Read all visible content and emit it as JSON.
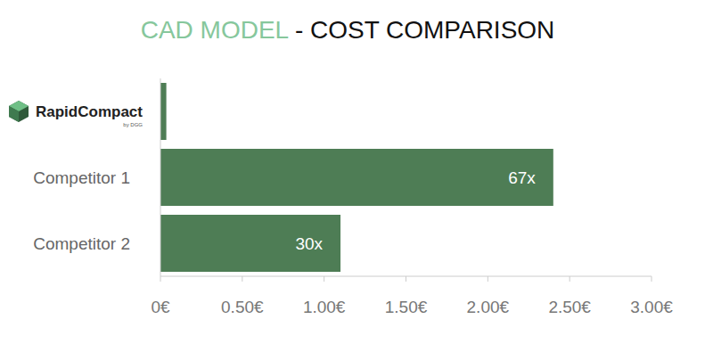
{
  "chart_data": {
    "type": "bar",
    "orientation": "horizontal",
    "title": "CAD MODEL - COST COMPARISON",
    "categories": [
      "RapidCompact",
      "Competitor 1",
      "Competitor 2"
    ],
    "category_subtitles": [
      "by DGG",
      null,
      null
    ],
    "values": [
      0.036,
      2.4,
      1.1
    ],
    "value_annotations": [
      null,
      "67x",
      "30x"
    ],
    "color": "#4e7d55",
    "xlim": [
      0,
      3
    ],
    "xticks": [
      {
        "value": 0,
        "label": "0€"
      },
      {
        "value": 0.5,
        "label": "0.50€"
      },
      {
        "value": 1,
        "label": "1.00€"
      },
      {
        "value": 1.5,
        "label": "1.50€"
      },
      {
        "value": 2,
        "label": "2.00€"
      },
      {
        "value": 2.5,
        "label": "2.50€"
      },
      {
        "value": 3,
        "label": "3.00€"
      }
    ],
    "grid": false,
    "data_labels": false
  }
}
